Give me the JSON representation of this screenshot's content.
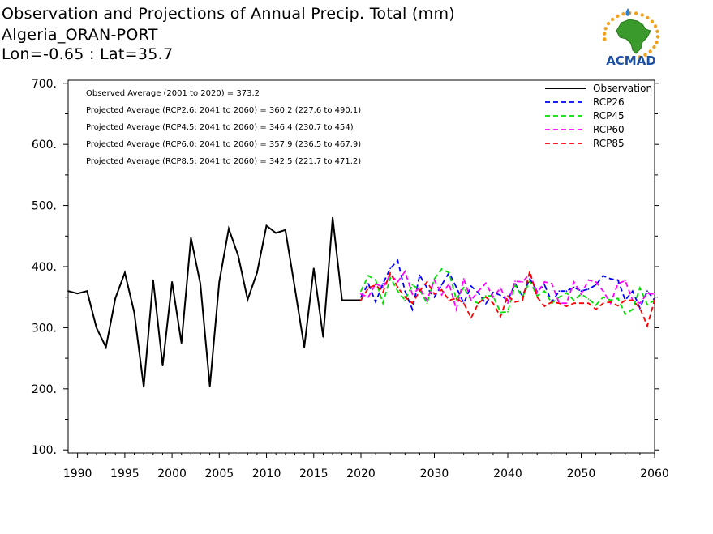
{
  "header": {
    "title": "Observation and Projections of Annual Precip. Total (mm)",
    "station": "Algeria_ORAN-PORT",
    "coords": "Lon=-0.65 : Lat=35.7"
  },
  "logo": {
    "text": "ACMAD",
    "icon": "africa-map-logo",
    "colors": {
      "africa": "#3a9a2c",
      "sun": "#f0a21c",
      "text": "#1c4fa3",
      "drop": "#2a7fd4"
    }
  },
  "annotations": [
    "Observed Average (2001 to 2020) = 373.2",
    "Projected Average (RCP2.6: 2041 to 2060) = 360.2 (227.6 to 490.1)",
    "Projected Average (RCP4.5: 2041 to 2060) = 346.4 (230.7 to 454)",
    "Projected Average (RCP6.0: 2041 to 2060) = 357.9 (236.5 to 467.9)",
    "Projected Average (RCP8.5: 2041 to 2060) = 342.5 (221.7 to 471.2)"
  ],
  "chart_data": {
    "type": "line",
    "xlim": [
      1989,
      2060
    ],
    "ylim": [
      95,
      705
    ],
    "y_ticks": [
      100,
      200,
      300,
      400,
      500,
      600,
      700
    ],
    "y_tick_labels": [
      "100.",
      "200.",
      "300.",
      "400.",
      "500.",
      "600.",
      "700."
    ],
    "x_ticks": [
      1990,
      1995,
      2000,
      2005,
      2010,
      2015,
      2020,
      2030,
      2040,
      2050,
      2060
    ],
    "x_tick_labels": [
      "1990",
      "1995",
      "2000",
      "2005",
      "2010",
      "2015",
      "2020",
      "2030",
      "2040",
      "2050",
      "2060"
    ],
    "legend_position": "top-right",
    "series": [
      {
        "name": "Observation",
        "color": "#000000",
        "dash": "solid",
        "x": [
          1989,
          1990,
          1991,
          1992,
          1993,
          1994,
          1995,
          1996,
          1997,
          1998,
          1999,
          2000,
          2001,
          2002,
          2003,
          2004,
          2005,
          2006,
          2007,
          2008,
          2009,
          2010,
          2011,
          2012,
          2013,
          2014,
          2015,
          2016,
          2017,
          2018,
          2019,
          2020
        ],
        "values": [
          360,
          356,
          360,
          300,
          268,
          348,
          390,
          325,
          203,
          378,
          238,
          375,
          275,
          447,
          372,
          204,
          375,
          462,
          418,
          346,
          390,
          467,
          455,
          460,
          365,
          268,
          397,
          285,
          480,
          345,
          345,
          345
        ]
      },
      {
        "name": "RCP26",
        "color": "#0000ff",
        "dash": "dashed",
        "x": [
          2020,
          2021,
          2022,
          2023,
          2024,
          2025,
          2026,
          2027,
          2028,
          2029,
          2030,
          2031,
          2032,
          2033,
          2034,
          2035,
          2036,
          2037,
          2038,
          2039,
          2040,
          2041,
          2042,
          2043,
          2044,
          2045,
          2046,
          2047,
          2048,
          2049,
          2050,
          2051,
          2052,
          2053,
          2054,
          2055,
          2056,
          2057,
          2058,
          2059,
          2060
        ],
        "values": [
          350,
          372,
          342,
          372,
          397,
          410,
          360,
          330,
          386,
          365,
          350,
          370,
          390,
          366,
          340,
          368,
          357,
          339,
          358,
          353,
          345,
          372,
          352,
          380,
          360,
          370,
          342,
          360,
          360,
          366,
          360,
          363,
          370,
          385,
          380,
          378,
          345,
          360,
          332,
          360,
          345
        ]
      },
      {
        "name": "RCP45",
        "color": "#00e000",
        "dash": "dashed",
        "x": [
          2020,
          2021,
          2022,
          2023,
          2024,
          2025,
          2026,
          2027,
          2028,
          2029,
          2030,
          2031,
          2032,
          2033,
          2034,
          2035,
          2036,
          2037,
          2038,
          2039,
          2040,
          2041,
          2042,
          2043,
          2044,
          2045,
          2046,
          2047,
          2048,
          2049,
          2050,
          2051,
          2052,
          2053,
          2054,
          2055,
          2056,
          2057,
          2058,
          2059,
          2060
        ],
        "values": [
          360,
          385,
          378,
          340,
          382,
          360,
          345,
          370,
          362,
          340,
          380,
          396,
          390,
          346,
          366,
          345,
          340,
          352,
          352,
          325,
          326,
          370,
          350,
          376,
          352,
          360,
          340,
          350,
          357,
          345,
          355,
          347,
          337,
          350,
          345,
          348,
          322,
          330,
          365,
          338,
          345
        ]
      },
      {
        "name": "RCP60",
        "color": "#ff00ff",
        "dash": "dashed",
        "x": [
          2020,
          2021,
          2022,
          2023,
          2024,
          2025,
          2026,
          2027,
          2028,
          2029,
          2030,
          2031,
          2032,
          2033,
          2034,
          2035,
          2036,
          2037,
          2038,
          2039,
          2040,
          2041,
          2042,
          2043,
          2044,
          2045,
          2046,
          2047,
          2048,
          2049,
          2050,
          2051,
          2052,
          2053,
          2054,
          2055,
          2056,
          2057,
          2058,
          2059,
          2060
        ],
        "values": [
          355,
          350,
          372,
          366,
          387,
          375,
          392,
          355,
          365,
          345,
          378,
          354,
          372,
          330,
          380,
          345,
          360,
          373,
          350,
          365,
          340,
          376,
          375,
          388,
          357,
          375,
          372,
          340,
          340,
          375,
          355,
          378,
          375,
          360,
          340,
          372,
          377,
          345,
          340,
          356,
          355
        ]
      },
      {
        "name": "RCP85",
        "color": "#ff0000",
        "dash": "dashed",
        "x": [
          2020,
          2021,
          2022,
          2023,
          2024,
          2025,
          2026,
          2027,
          2028,
          2029,
          2030,
          2031,
          2032,
          2033,
          2034,
          2035,
          2036,
          2037,
          2038,
          2039,
          2040,
          2041,
          2042,
          2043,
          2044,
          2045,
          2046,
          2047,
          2048,
          2049,
          2050,
          2051,
          2052,
          2053,
          2054,
          2055,
          2056,
          2057,
          2058,
          2059,
          2060
        ],
        "values": [
          345,
          365,
          370,
          358,
          390,
          366,
          350,
          340,
          360,
          375,
          355,
          362,
          345,
          348,
          340,
          316,
          340,
          350,
          340,
          318,
          352,
          342,
          345,
          392,
          350,
          335,
          342,
          340,
          335,
          340,
          340,
          340,
          330,
          340,
          342,
          336,
          345,
          345,
          332,
          303,
          345
        ]
      }
    ]
  }
}
